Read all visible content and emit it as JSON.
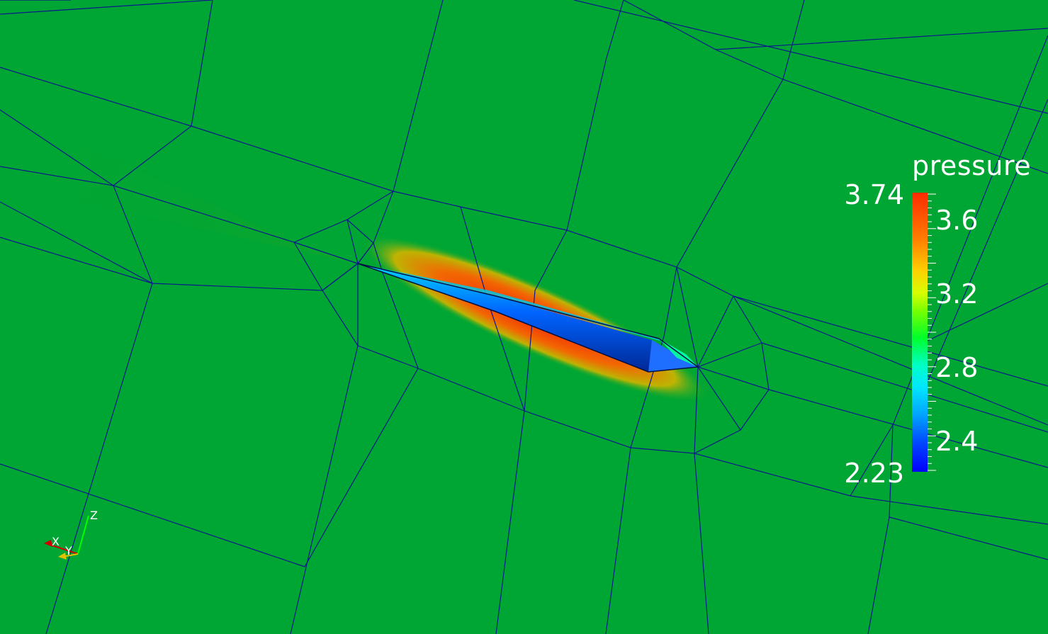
{
  "scalar_bar": {
    "title": "pressure",
    "max_label": "3.74",
    "min_label": "2.23",
    "range": [
      2.23,
      3.74
    ],
    "ticks": [
      "3.6",
      "3.2",
      "2.8",
      "2.4"
    ],
    "tick_values": [
      3.6,
      3.2,
      2.8,
      2.4
    ]
  },
  "orientation_axes": {
    "x_label": "X",
    "y_label": "Y",
    "z_label": "Z"
  },
  "colors": {
    "background": "#00a633",
    "mesh_lines": "#0a1a8a",
    "high": "#ff2a00",
    "low": "#0000ff"
  }
}
